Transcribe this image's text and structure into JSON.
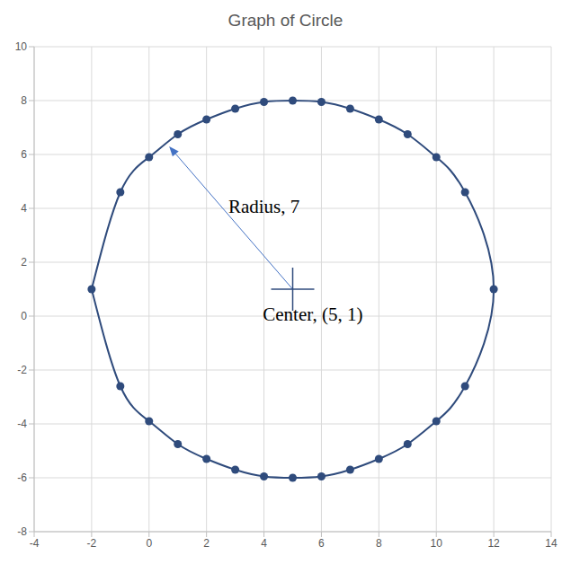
{
  "chart_data": {
    "type": "scatter",
    "title": "Graph of Circle",
    "x": [
      -2,
      -1,
      0,
      1,
      2,
      3,
      4,
      5,
      6,
      7,
      8,
      9,
      10,
      11,
      12,
      11,
      10,
      9,
      8,
      7,
      6,
      5,
      4,
      3,
      2,
      1,
      0,
      -1
    ],
    "values": [
      1,
      4.6,
      5.9,
      6.75,
      7.3,
      7.7,
      7.95,
      8,
      7.95,
      7.7,
      7.3,
      6.75,
      5.9,
      4.6,
      1,
      -2.6,
      -3.9,
      -4.75,
      -5.3,
      -5.7,
      -5.95,
      -6,
      -5.95,
      -5.7,
      -5.3,
      -4.75,
      -3.9,
      -2.6
    ],
    "color": "#2f4b7c",
    "marker": "circle",
    "line_style": "smooth",
    "xlim": [
      -4,
      14
    ],
    "xticks": [
      -4,
      -2,
      0,
      2,
      4,
      6,
      8,
      10,
      12,
      14
    ],
    "ylim": [
      -8,
      10
    ],
    "yticks": [
      -8,
      -6,
      -4,
      -2,
      0,
      2,
      4,
      6,
      8,
      10
    ],
    "grid": true,
    "center": {
      "x": 5,
      "y": 1,
      "marker": "cross"
    },
    "annotations": [
      {
        "text": "Radius, 7",
        "x": 4,
        "y": 4,
        "arrow_from": [
          5,
          1
        ],
        "arrow_to": [
          0.7,
          6.3
        ]
      },
      {
        "text": "Center, (5, 1)",
        "x": 5.7,
        "y": 0
      }
    ]
  }
}
